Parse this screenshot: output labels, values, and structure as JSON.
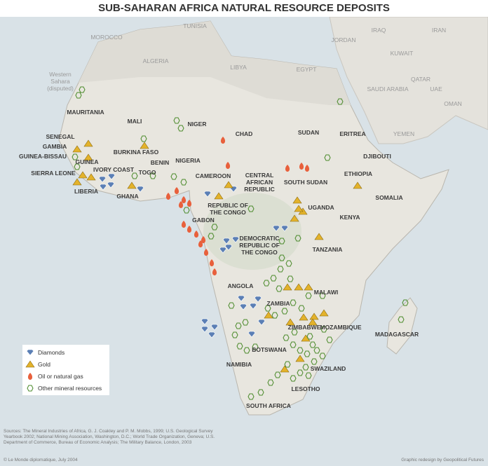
{
  "header": {
    "title": "SUB-SAHARAN AFRICA NATURAL RESOURCE DEPOSITS"
  },
  "labels": [
    "TUNISIA",
    "MOROCCO",
    "ALGERIA",
    "LIBYA",
    "EGYPT",
    "JORDAN",
    "IRAQ",
    "IRAN",
    "KUWAIT",
    "QATAR",
    "SAUDI ARABIA",
    "UAE",
    "OMAN",
    "YEMEN",
    "Western\nSahara\n(disputed)",
    "MAURITANIA",
    "MALI",
    "NIGER",
    "CHAD",
    "SUDAN",
    "ERITREA",
    "DJIBOUTI",
    "SENEGAL",
    "GAMBIA",
    "GUINEA-BISSAU",
    "GUINEA",
    "BURKINA FASO",
    "BENIN",
    "NIGERIA",
    "SIERRA LEONE",
    "IVORY COAST",
    "TOGO",
    "LIBERIA",
    "GHANA",
    "CAMEROON",
    "CENTRAL\nAFRICAN\nREPUBLIC",
    "SOUTH SUDAN",
    "ETHIOPIA",
    "SOMALIA",
    "UGANDA",
    "KENYA",
    "REPUBLIC OF\nTHE CONGO",
    "GABON",
    "DEMOCRATIC\nREPUBLIC OF\nTHE CONGO",
    "TANZANIA",
    "ANGOLA",
    "ZAMBIA",
    "MALAWI",
    "ZIMBABWE",
    "MOZAMBIQUE",
    "MADAGASCAR",
    "BOTSWANA",
    "NAMIBIA",
    "SWAZILAND",
    "LESOTHO",
    "SOUTH AFRICA"
  ],
  "legend": [
    "Diamonds",
    "Gold",
    "Oil or natural gas",
    "Other mineral resources"
  ],
  "footer": {
    "sources": "Sources: The Mineral Industries of Africa, G. J. Coakley and P. M. Mobbs, 1999; U.S. Geological Survey Yearbook 2002; National Mining Association, Washington, D.C.; World Trade Organization, Geneva; U.S. Department of Commerce, Bureau of Economic Analysis; The Military Balance, London, 2003",
    "copyright": "© Le Monde diplomatique, July 2004",
    "credit": "Graphic redesign by Geopolitical Futures"
  }
}
